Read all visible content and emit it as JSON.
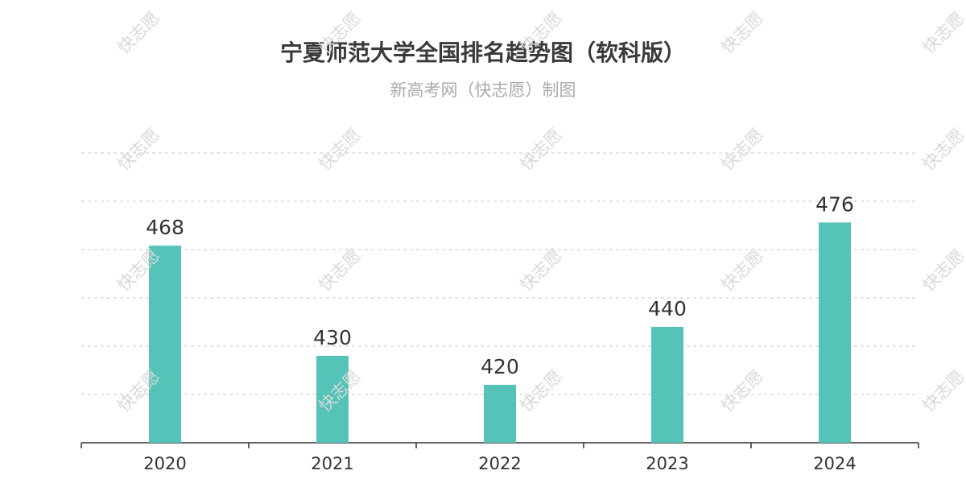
{
  "title": "宁夏师范大学全国排名趋势图（软科版）",
  "subtitle": "新高考网（快志愿）制图",
  "watermark_text": "快志愿",
  "colors": {
    "bar": "#55c3b8",
    "grid": "#c8c8c8",
    "axis": "#333333",
    "label": "#333333"
  },
  "chart_data": {
    "type": "bar",
    "categories": [
      "2020",
      "2021",
      "2022",
      "2023",
      "2024"
    ],
    "values": [
      468,
      430,
      420,
      440,
      476
    ],
    "title": "宁夏师范大学全国排名趋势图（软科版）",
    "subtitle": "新高考网（快志愿）制图",
    "xlabel": "",
    "ylabel": "",
    "grid": true,
    "axis_inverted": true,
    "ylim": [
      500,
      400
    ]
  }
}
